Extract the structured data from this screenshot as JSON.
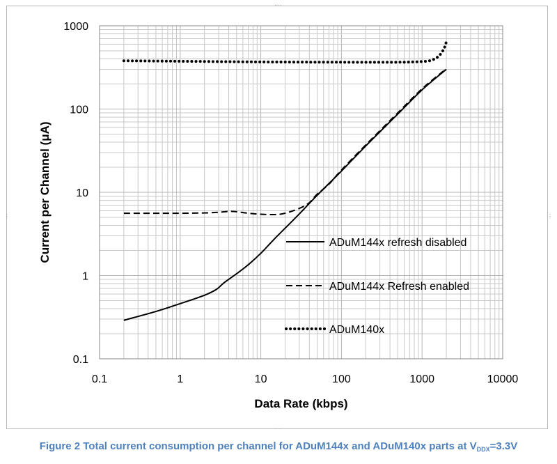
{
  "chart_data": {
    "type": "line",
    "xlabel": "Data Rate (kbps)",
    "ylabel": "Current per Channel (μA)",
    "xscale": "log",
    "yscale": "log",
    "xlim": [
      0.1,
      10000
    ],
    "ylim": [
      0.1,
      1000
    ],
    "xticks": [
      "0.1",
      "1",
      "10",
      "100",
      "1000",
      "10000"
    ],
    "yticks": [
      "0.1",
      "1",
      "10",
      "100",
      "1000"
    ],
    "grid": true,
    "legend_position": "lower-right",
    "series": [
      {
        "name": "ADuM144x refresh disabled",
        "style": "solid",
        "points": [
          [
            0.2,
            0.29
          ],
          [
            0.5,
            0.37
          ],
          [
            1,
            0.46
          ],
          [
            2,
            0.58
          ],
          [
            2.8,
            0.68
          ],
          [
            3.5,
            0.82
          ],
          [
            5,
            1.05
          ],
          [
            7,
            1.35
          ],
          [
            10,
            1.85
          ],
          [
            15,
            2.8
          ],
          [
            20,
            3.7
          ],
          [
            30,
            5.5
          ],
          [
            50,
            9.2
          ],
          [
            100,
            18
          ],
          [
            200,
            36
          ],
          [
            500,
            87
          ],
          [
            1000,
            170
          ],
          [
            2000,
            300
          ]
        ]
      },
      {
        "name": "ADuM144x Refresh enabled",
        "style": "dashed",
        "points": [
          [
            0.2,
            5.6
          ],
          [
            0.5,
            5.6
          ],
          [
            1,
            5.6
          ],
          [
            2,
            5.65
          ],
          [
            3,
            5.75
          ],
          [
            4,
            5.9
          ],
          [
            5,
            5.85
          ],
          [
            7,
            5.6
          ],
          [
            10,
            5.45
          ],
          [
            15,
            5.4
          ],
          [
            20,
            5.6
          ],
          [
            30,
            6.4
          ],
          [
            40,
            7.5
          ],
          [
            50,
            9.5
          ],
          [
            70,
            12.5
          ],
          [
            100,
            18.5
          ],
          [
            200,
            37
          ],
          [
            500,
            90
          ],
          [
            1000,
            175
          ],
          [
            2000,
            305
          ]
        ]
      },
      {
        "name": "ADuM140x",
        "style": "dotted",
        "points": [
          [
            0.2,
            380
          ],
          [
            1,
            375
          ],
          [
            10,
            368
          ],
          [
            100,
            365
          ],
          [
            500,
            365
          ],
          [
            1000,
            372
          ],
          [
            1300,
            385
          ],
          [
            1600,
            430
          ],
          [
            1850,
            520
          ],
          [
            2000,
            640
          ]
        ]
      }
    ]
  },
  "caption": {
    "text": "Figure 2 Total current consumption per channel for ADuM144x and ADuM140x parts at V",
    "subscript": "DDX",
    "suffix": "=3.3V"
  },
  "colors": {
    "line": "#000000",
    "grid": "#c8c8c8",
    "caption": "#4f81bd",
    "frame": "#b7b7b7"
  }
}
